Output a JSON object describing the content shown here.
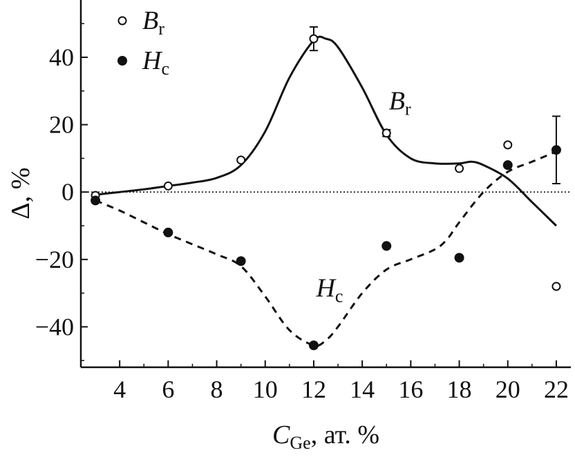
{
  "chart_data": {
    "type": "scatter",
    "xlabel": {
      "main": "C",
      "sub": "Ge",
      "suffix": ", ат. %"
    },
    "ylabel": "Δ, %",
    "xlim": [
      2.4,
      22.6
    ],
    "ylim": [
      -52,
      57
    ],
    "xticks": [
      4,
      6,
      8,
      10,
      12,
      14,
      16,
      18,
      20,
      22
    ],
    "yticks": [
      -40,
      -20,
      0,
      20,
      40
    ],
    "ytick_labels": [
      "−40",
      "−20",
      "0",
      "20",
      "40"
    ],
    "reference_line": {
      "y": 0,
      "style": "dotted"
    },
    "legend": {
      "placement": "top-left",
      "entries": [
        {
          "main": "B",
          "sub": "r",
          "marker": "open-circle"
        },
        {
          "main": "H",
          "sub": "c",
          "marker": "filled-circle"
        }
      ]
    },
    "series": [
      {
        "name": "Br",
        "label": {
          "main": "B",
          "sub": "r"
        },
        "marker": "open-circle",
        "x": [
          3,
          6,
          9,
          12,
          15,
          18,
          20,
          22
        ],
        "y": [
          -1,
          1.8,
          9.5,
          45.5,
          17.5,
          7,
          14,
          -28
        ],
        "err": [
          0,
          0,
          0,
          3.5,
          1,
          0,
          0,
          0
        ],
        "fit": {
          "style": "solid",
          "x": [
            3,
            4,
            5,
            6,
            7,
            8,
            9,
            10,
            11,
            12,
            12.5,
            13,
            14,
            15,
            16,
            17,
            18,
            18.5,
            19,
            20,
            21,
            22
          ],
          "y": [
            -0.8,
            0,
            0.8,
            1.8,
            2.8,
            4.2,
            8,
            18,
            34,
            45,
            45.5,
            43,
            31,
            17,
            10,
            8.5,
            8.5,
            9,
            8,
            4,
            -3,
            -10
          ]
        }
      },
      {
        "name": "Hc",
        "label": {
          "main": "H",
          "sub": "c"
        },
        "marker": "filled-circle",
        "x": [
          3,
          6,
          9,
          12,
          15,
          18,
          20,
          22
        ],
        "y": [
          -2.5,
          -12,
          -20.5,
          -45.5,
          -16,
          -19.5,
          8,
          12.5
        ],
        "err": [
          0,
          0,
          0,
          0,
          0,
          0,
          0,
          10
        ],
        "fit": {
          "style": "dashed",
          "x": [
            3,
            4,
            5,
            6,
            7,
            8,
            9,
            10,
            11,
            12,
            12.5,
            13,
            14,
            15,
            16,
            17,
            17.5,
            18,
            19,
            20,
            21,
            22
          ],
          "y": [
            -2.5,
            -5.5,
            -9,
            -12.5,
            -15.5,
            -18.5,
            -22,
            -31,
            -41,
            -45.5,
            -44,
            -40,
            -30,
            -23,
            -20,
            -17,
            -14,
            -9,
            0,
            6,
            9,
            12
          ]
        }
      }
    ],
    "annotations": [
      {
        "main": "B",
        "sub": "r",
        "x": 15.1,
        "y": 24.5
      },
      {
        "main": "H",
        "sub": "c",
        "x": 12.1,
        "y": -31
      }
    ]
  }
}
